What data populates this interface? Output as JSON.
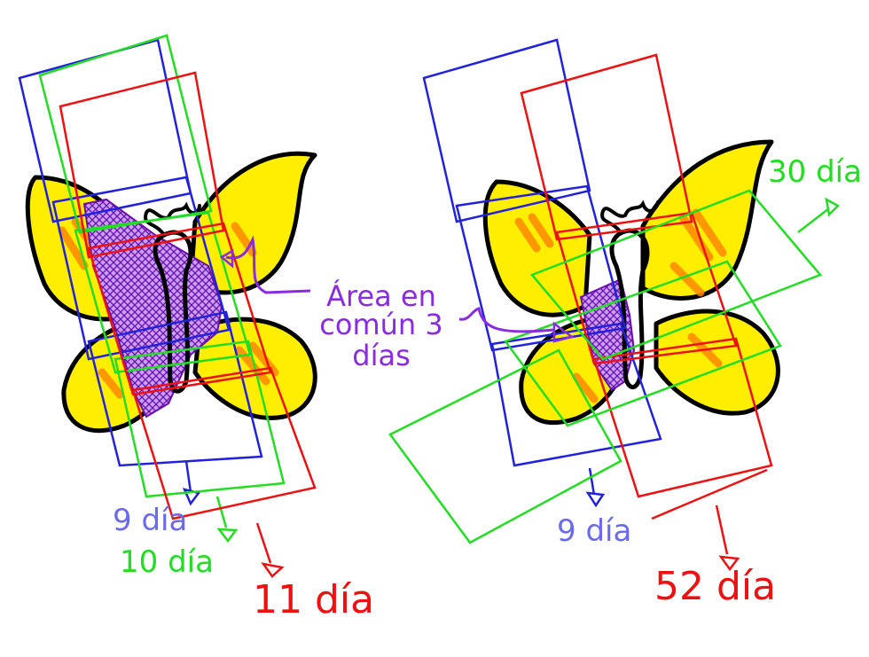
{
  "labels": {
    "left_blue": "9 día",
    "left_green": "10 día",
    "left_red": "11 día",
    "common_area_line1": "Área en",
    "common_area_line2": "común 3",
    "common_area_line3": "días",
    "right_green": "30 día",
    "right_blue": "9 día",
    "right_red": "52 día"
  },
  "colors": {
    "blue": "#2222dd",
    "green": "#22dd22",
    "red": "#ee1111",
    "purple": "#8a2be2",
    "yellow": "#ffee00",
    "orange": "#ff8800",
    "outline": "#000000"
  }
}
